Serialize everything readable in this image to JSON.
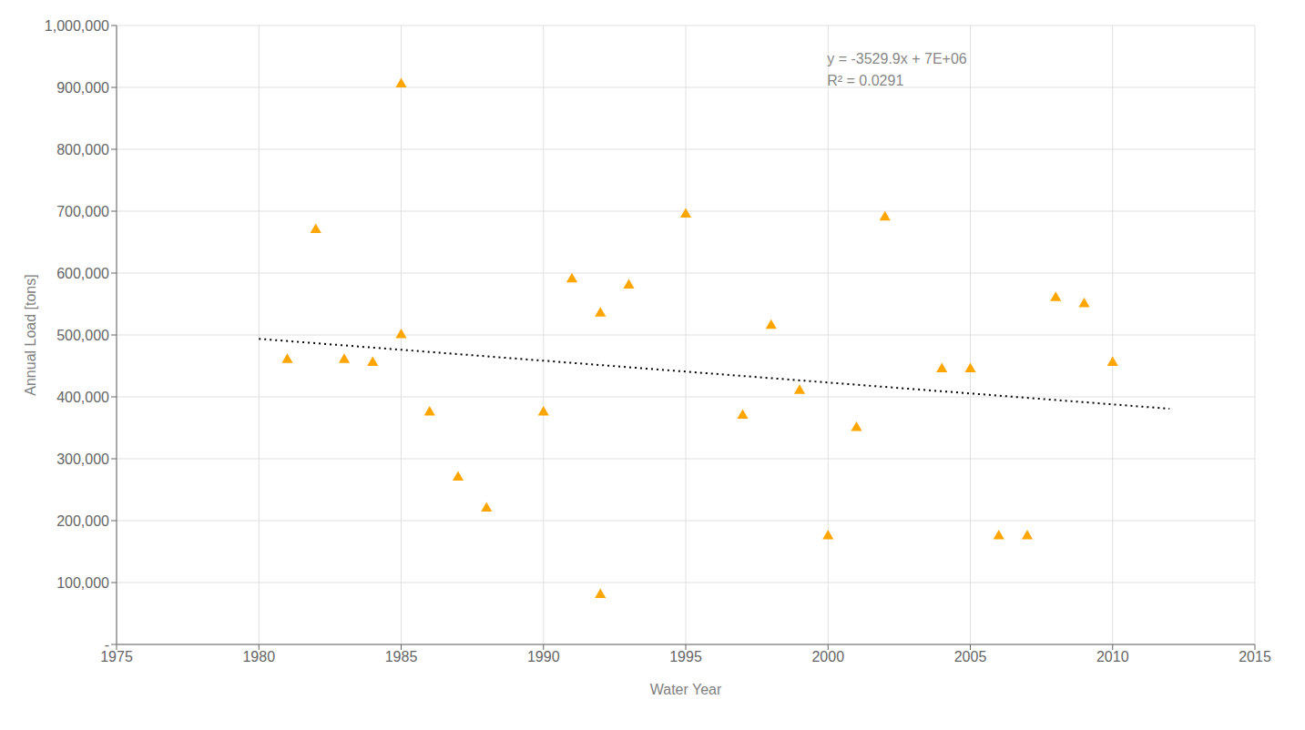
{
  "chart_data": {
    "type": "scatter",
    "title": "",
    "xlabel": "Water Year",
    "ylabel": "Annual Load [tons]",
    "x": [
      1981,
      1982,
      1983,
      1984,
      1985,
      1985,
      1986,
      1987,
      1988,
      1990,
      1991,
      1992,
      1992,
      1993,
      1995,
      1997,
      1998,
      1999,
      2000,
      2001,
      2002,
      2004,
      2005,
      2006,
      2007,
      2008,
      2009,
      2010
    ],
    "values": [
      460000,
      670000,
      460000,
      455000,
      905000,
      500000,
      375000,
      270000,
      220000,
      375000,
      590000,
      80000,
      535000,
      580000,
      695000,
      370000,
      515000,
      410000,
      175000,
      350000,
      690000,
      445000,
      445000,
      175000,
      175000,
      560000,
      550000,
      455000
    ],
    "color": "#FFA500",
    "marker": "triangle",
    "trendline": {
      "x": [
        1980,
        2012
      ],
      "values": [
        493740,
        380783.2
      ],
      "color": "#000000",
      "line_style": "dotted"
    },
    "annotation": {
      "text": [
        "y = -3529.9x + 7E+06",
        "R² = 0.0291"
      ],
      "x": 2000,
      "y": 960000
    },
    "xlim": [
      1975,
      2015
    ],
    "ylim": [
      0,
      1000000
    ],
    "xticks": [
      1975,
      1980,
      1985,
      1990,
      1995,
      2000,
      2005,
      2010,
      2015
    ],
    "yticks": [
      {
        "value": 0,
        "label": "-"
      },
      {
        "value": 100000,
        "label": "100,000"
      },
      {
        "value": 200000,
        "label": "200,000"
      },
      {
        "value": 300000,
        "label": "300,000"
      },
      {
        "value": 400000,
        "label": "400,000"
      },
      {
        "value": 500000,
        "label": "500,000"
      },
      {
        "value": 600000,
        "label": "600,000"
      },
      {
        "value": 700000,
        "label": "700,000"
      },
      {
        "value": 800000,
        "label": "800,000"
      },
      {
        "value": 900000,
        "label": "900,000"
      },
      {
        "value": 1000000,
        "label": "1,000,000"
      }
    ],
    "grid": true
  }
}
